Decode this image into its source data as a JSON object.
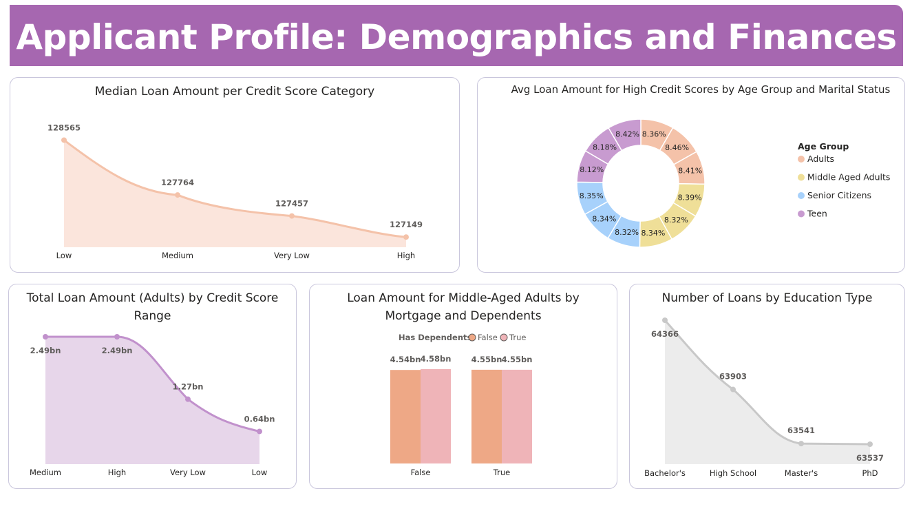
{
  "page": {
    "title": "Applicant Profile: Demographics and Finances"
  },
  "colors": {
    "banner": "#a667b0",
    "peach": "#f4c2a9",
    "peach_fill": "#fbe5dc",
    "purple_line": "#c191cc",
    "purple_fill": "#e7d6ea",
    "gray_line": "#c8c8c8",
    "gray_fill": "#ececec",
    "bar_false": "#eea886",
    "bar_true": "#efb4b8"
  },
  "chart_data": [
    {
      "id": "median_loan",
      "type": "area",
      "title": "Median Loan Amount per Credit Score Category",
      "categories": [
        "Low",
        "Medium",
        "Very Low",
        "High"
      ],
      "values": [
        128565,
        127764,
        127457,
        127149
      ],
      "labels": [
        "128565",
        "127764",
        "127457",
        "127149"
      ]
    },
    {
      "id": "avg_loan_donut",
      "type": "pie",
      "title": "Avg Loan Amount for High Credit Scores by Age Group and Marital Status",
      "legend_title": "Age Group",
      "legend": [
        {
          "name": "Adults",
          "color": "#f4c2a9"
        },
        {
          "name": "Middle Aged Adults",
          "color": "#efdf98"
        },
        {
          "name": "Senior Citizens",
          "color": "#a7d1fb"
        },
        {
          "name": "Teen",
          "color": "#c89bd0"
        }
      ],
      "slices": [
        {
          "group": "Adults",
          "value": 8.36,
          "label": "8.36%"
        },
        {
          "group": "Adults",
          "value": 8.46,
          "label": "8.46%"
        },
        {
          "group": "Adults",
          "value": 8.41,
          "label": "8.41%"
        },
        {
          "group": "Middle Aged Adults",
          "value": 8.39,
          "label": "8.39%"
        },
        {
          "group": "Middle Aged Adults",
          "value": 8.32,
          "label": "8.32%"
        },
        {
          "group": "Middle Aged Adults",
          "value": 8.34,
          "label": "8.34%"
        },
        {
          "group": "Senior Citizens",
          "value": 8.32,
          "label": "8.32%"
        },
        {
          "group": "Senior Citizens",
          "value": 8.34,
          "label": "8.34%"
        },
        {
          "group": "Senior Citizens",
          "value": 8.35,
          "label": "8.35%"
        },
        {
          "group": "Teen",
          "value": 8.12,
          "label": "8.12%"
        },
        {
          "group": "Teen",
          "value": 8.18,
          "label": "8.18%"
        },
        {
          "group": "Teen",
          "value": 8.42,
          "label": "8.42%"
        }
      ]
    },
    {
      "id": "total_loan_adults",
      "type": "area",
      "title": "Total Loan Amount (Adults) by Credit Score Range",
      "categories": [
        "Medium",
        "High",
        "Very Low",
        "Low"
      ],
      "values": [
        2.49,
        2.49,
        1.27,
        0.64
      ],
      "labels": [
        "2.49bn",
        "2.49bn",
        "1.27bn",
        "0.64bn"
      ]
    },
    {
      "id": "middle_aged_bars",
      "type": "bar",
      "title": "Loan Amount for Middle-Aged Adults by Mortgage and Dependents",
      "legend_title": "Has Dependents",
      "categories": [
        "False",
        "True"
      ],
      "series": [
        {
          "name": "False",
          "values": [
            4.54,
            4.55
          ],
          "labels": [
            "4.54bn",
            "4.55bn"
          ]
        },
        {
          "name": "True",
          "values": [
            4.58,
            4.55
          ],
          "labels": [
            "4.58bn",
            "4.55bn"
          ]
        }
      ]
    },
    {
      "id": "loans_by_education",
      "type": "area",
      "title": "Number of Loans by Education Type",
      "categories": [
        "Bachelor's",
        "High School",
        "Master's",
        "PhD"
      ],
      "values": [
        64366,
        63903,
        63541,
        63537
      ],
      "labels": [
        "64366",
        "63903",
        "63541",
        "63537"
      ]
    }
  ]
}
